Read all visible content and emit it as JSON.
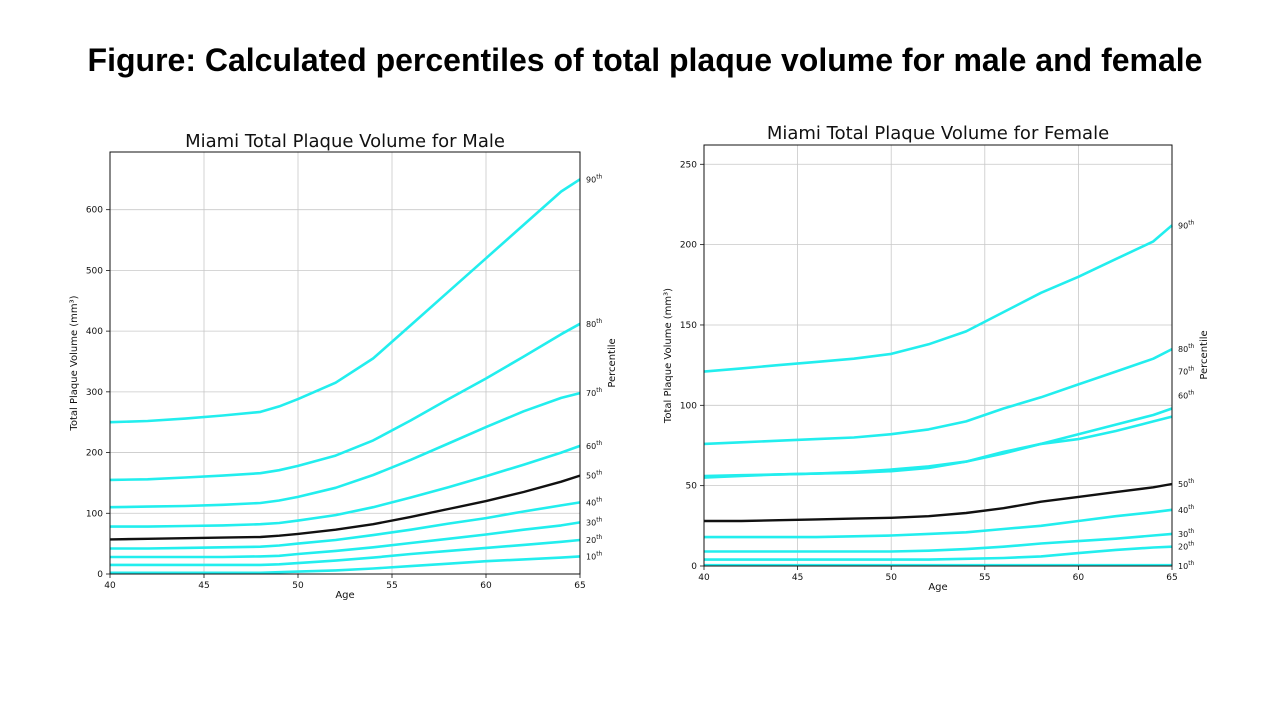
{
  "slide": {
    "title": "Figure: Calculated percentiles of total plaque volume for male and female"
  },
  "colors": {
    "percentile": "#22eeee",
    "median": "#111111",
    "grid": "#c8c8c8"
  },
  "chart_data": [
    {
      "id": "male",
      "type": "line",
      "title": "Miami Total Plaque Volume for Male",
      "xlabel": "Age",
      "ylabel": "Total Plaque Volume (mm³)",
      "right_label": "Percentile",
      "xlim": [
        40,
        65
      ],
      "ylim": [
        0,
        695
      ],
      "xticks": [
        40,
        45,
        50,
        55,
        60,
        65
      ],
      "yticks": [
        0,
        100,
        200,
        300,
        400,
        500,
        600
      ],
      "grid": true,
      "x": [
        40,
        42,
        44,
        46,
        48,
        49,
        50,
        52,
        54,
        56,
        58,
        60,
        62,
        64,
        65
      ],
      "series": [
        {
          "name": "10th",
          "num": "10",
          "sup": "th",
          "values": [
            2,
            2,
            2,
            2,
            2,
            3,
            4,
            6,
            9,
            13,
            17,
            21,
            24,
            27,
            29
          ]
        },
        {
          "name": "20th",
          "num": "20",
          "sup": "th",
          "values": [
            15,
            15,
            15,
            15,
            15,
            16,
            18,
            22,
            27,
            33,
            38,
            43,
            48,
            53,
            56
          ]
        },
        {
          "name": "30th",
          "num": "30",
          "sup": "th",
          "values": [
            28,
            28,
            28,
            28,
            29,
            30,
            33,
            38,
            44,
            51,
            58,
            65,
            73,
            80,
            85
          ]
        },
        {
          "name": "40th",
          "num": "40",
          "sup": "th",
          "values": [
            42,
            42,
            43,
            44,
            45,
            47,
            50,
            56,
            64,
            73,
            83,
            92,
            103,
            113,
            118
          ]
        },
        {
          "name": "50th",
          "num": "50",
          "sup": "th",
          "values": [
            57,
            58,
            59,
            60,
            61,
            63,
            66,
            73,
            82,
            94,
            107,
            120,
            135,
            152,
            162
          ]
        },
        {
          "name": "60th",
          "num": "60",
          "sup": "th",
          "values": [
            78,
            78,
            79,
            80,
            82,
            84,
            88,
            97,
            110,
            126,
            143,
            161,
            180,
            200,
            211
          ]
        },
        {
          "name": "70th",
          "num": "70",
          "sup": "th",
          "values": [
            110,
            111,
            112,
            114,
            117,
            121,
            127,
            142,
            163,
            188,
            215,
            242,
            268,
            290,
            298
          ]
        },
        {
          "name": "80th",
          "num": "80",
          "sup": "th",
          "values": [
            155,
            156,
            159,
            162,
            166,
            171,
            178,
            195,
            220,
            253,
            288,
            322,
            358,
            395,
            412
          ]
        },
        {
          "name": "90th",
          "num": "90",
          "sup": "th",
          "values": [
            250,
            252,
            256,
            261,
            267,
            276,
            288,
            315,
            355,
            410,
            465,
            520,
            575,
            630,
            650
          ]
        }
      ]
    },
    {
      "id": "female",
      "type": "line",
      "title": "Miami Total Plaque Volume for Female",
      "xlabel": "Age",
      "ylabel": "Total Plaque Volume (mm³)",
      "right_label": "Percentile",
      "xlim": [
        40,
        65
      ],
      "ylim": [
        0,
        262
      ],
      "xticks": [
        40,
        45,
        50,
        55,
        60,
        65
      ],
      "yticks": [
        0,
        50,
        100,
        150,
        200,
        250
      ],
      "grid": true,
      "x": [
        40,
        42,
        44,
        46,
        48,
        50,
        52,
        54,
        56,
        58,
        60,
        62,
        64,
        65
      ],
      "series": [
        {
          "name": "10th",
          "num": "10",
          "sup": "th",
          "values": [
            0.5,
            0.5,
            0.5,
            0.5,
            0.5,
            0.5,
            0.5,
            0.5,
            0.5,
            0.5,
            0.5,
            0.5,
            0.5,
            0.5
          ]
        },
        {
          "name": "20th",
          "num": "20",
          "sup": "th",
          "values": [
            4,
            4,
            4,
            4,
            4,
            4,
            4,
            4.5,
            5,
            6,
            8,
            10,
            11.5,
            12
          ]
        },
        {
          "name": "30th",
          "num": "30",
          "sup": "th",
          "values": [
            9,
            9,
            9,
            9,
            9,
            9,
            9.5,
            10.5,
            12,
            14,
            15.5,
            17,
            19,
            20
          ]
        },
        {
          "name": "40th",
          "num": "40",
          "sup": "th",
          "values": [
            18,
            18,
            18,
            18,
            18.5,
            19,
            20,
            21,
            23,
            25,
            28,
            31,
            33.5,
            35
          ]
        },
        {
          "name": "50th",
          "num": "50",
          "sup": "th",
          "values": [
            28,
            28,
            28.5,
            29,
            29.5,
            30,
            31,
            33,
            36,
            40,
            43,
            46,
            49,
            51
          ]
        },
        {
          "name": "60th",
          "num": "60",
          "sup": "th",
          "values": [
            55,
            56,
            57,
            57.5,
            58.5,
            60,
            62,
            65,
            70,
            76,
            82,
            88,
            94,
            98
          ]
        },
        {
          "name": "70th",
          "num": "70",
          "sup": "th",
          "values": [
            56,
            56.5,
            57,
            57.5,
            58,
            59,
            61,
            65,
            71,
            76,
            79,
            84,
            90,
            93
          ]
        },
        {
          "name": "80th",
          "num": "80",
          "sup": "th",
          "values": [
            76,
            77,
            78,
            79,
            80,
            82,
            85,
            90,
            98,
            105,
            113,
            121,
            129,
            135
          ]
        },
        {
          "name": "90th",
          "num": "90",
          "sup": "th",
          "values": [
            121,
            123,
            125,
            127,
            129,
            132,
            138,
            146,
            158,
            170,
            180,
            191,
            202,
            212
          ]
        }
      ]
    }
  ]
}
